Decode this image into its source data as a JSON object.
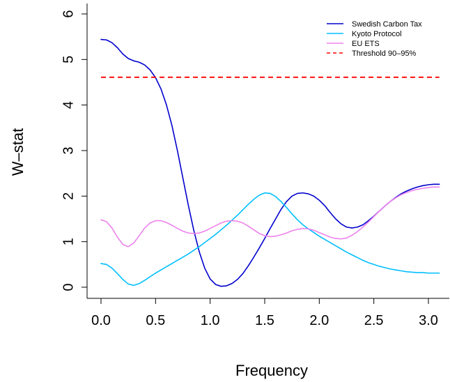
{
  "chart_data": {
    "type": "line",
    "title": "",
    "xlabel": "Frequency",
    "ylabel": "W–stat",
    "xlim": [
      0,
      3.1
    ],
    "ylim": [
      0,
      6
    ],
    "xticks": [
      0.0,
      0.5,
      1.0,
      1.5,
      2.0,
      2.5,
      3.0
    ],
    "xtick_labels": [
      "0.0",
      "0.5",
      "1.0",
      "1.5",
      "2.0",
      "2.5",
      "3.0"
    ],
    "yticks": [
      0,
      1,
      2,
      3,
      4,
      5,
      6
    ],
    "ytick_labels": [
      "0",
      "1",
      "2",
      "3",
      "4",
      "5",
      "6"
    ],
    "grid": false,
    "legend_position": "top-right",
    "series": [
      {
        "name": "Swedish Carbon Tax",
        "color": "#0000cd",
        "dash": "solid",
        "x": [
          0.0,
          0.05,
          0.1,
          0.15,
          0.2,
          0.25,
          0.3,
          0.35,
          0.4,
          0.45,
          0.5,
          0.55,
          0.6,
          0.65,
          0.7,
          0.75,
          0.8,
          0.85,
          0.9,
          0.95,
          1.0,
          1.05,
          1.1,
          1.15,
          1.2,
          1.25,
          1.3,
          1.35,
          1.4,
          1.45,
          1.5,
          1.55,
          1.6,
          1.65,
          1.7,
          1.75,
          1.8,
          1.85,
          1.9,
          1.95,
          2.0,
          2.05,
          2.1,
          2.15,
          2.2,
          2.25,
          2.3,
          2.35,
          2.4,
          2.45,
          2.5,
          2.55,
          2.6,
          2.65,
          2.7,
          2.75,
          2.8,
          2.85,
          2.9,
          2.95,
          3.0,
          3.05,
          3.1
        ],
        "values": [
          5.44,
          5.43,
          5.37,
          5.26,
          5.12,
          5.02,
          4.97,
          4.94,
          4.88,
          4.77,
          4.6,
          4.35,
          4.0,
          3.55,
          3.0,
          2.4,
          1.8,
          1.25,
          0.78,
          0.42,
          0.18,
          0.06,
          0.02,
          0.03,
          0.08,
          0.17,
          0.3,
          0.47,
          0.66,
          0.86,
          1.07,
          1.29,
          1.5,
          1.71,
          1.88,
          2.0,
          2.06,
          2.07,
          2.05,
          2.0,
          1.91,
          1.79,
          1.64,
          1.5,
          1.39,
          1.32,
          1.3,
          1.32,
          1.37,
          1.46,
          1.56,
          1.67,
          1.78,
          1.88,
          1.97,
          2.05,
          2.11,
          2.16,
          2.2,
          2.23,
          2.25,
          2.26,
          2.26
        ]
      },
      {
        "name": "Kyoto Protocol",
        "color": "#00bfff",
        "dash": "solid",
        "x": [
          0.0,
          0.05,
          0.1,
          0.15,
          0.2,
          0.25,
          0.3,
          0.35,
          0.4,
          0.45,
          0.5,
          0.55,
          0.6,
          0.65,
          0.7,
          0.75,
          0.8,
          0.85,
          0.9,
          0.95,
          1.0,
          1.05,
          1.1,
          1.15,
          1.2,
          1.25,
          1.3,
          1.35,
          1.4,
          1.45,
          1.5,
          1.55,
          1.6,
          1.65,
          1.7,
          1.75,
          1.8,
          1.85,
          1.9,
          1.95,
          2.0,
          2.05,
          2.1,
          2.15,
          2.2,
          2.25,
          2.3,
          2.35,
          2.4,
          2.45,
          2.5,
          2.55,
          2.6,
          2.65,
          2.7,
          2.75,
          2.8,
          2.85,
          2.9,
          2.95,
          3.0,
          3.05,
          3.1
        ],
        "values": [
          0.52,
          0.5,
          0.42,
          0.3,
          0.17,
          0.07,
          0.04,
          0.08,
          0.15,
          0.23,
          0.31,
          0.38,
          0.45,
          0.52,
          0.59,
          0.66,
          0.73,
          0.81,
          0.89,
          0.98,
          1.07,
          1.16,
          1.26,
          1.36,
          1.47,
          1.58,
          1.7,
          1.82,
          1.93,
          2.02,
          2.07,
          2.06,
          1.99,
          1.88,
          1.75,
          1.61,
          1.48,
          1.37,
          1.28,
          1.2,
          1.12,
          1.05,
          0.98,
          0.91,
          0.84,
          0.77,
          0.71,
          0.65,
          0.59,
          0.54,
          0.5,
          0.46,
          0.43,
          0.4,
          0.38,
          0.36,
          0.34,
          0.33,
          0.32,
          0.32,
          0.31,
          0.31,
          0.31
        ]
      },
      {
        "name": "EU ETS",
        "color": "#ee82ee",
        "dash": "solid",
        "x": [
          0.0,
          0.05,
          0.1,
          0.15,
          0.2,
          0.25,
          0.3,
          0.35,
          0.4,
          0.45,
          0.5,
          0.55,
          0.6,
          0.65,
          0.7,
          0.75,
          0.8,
          0.85,
          0.9,
          0.95,
          1.0,
          1.05,
          1.1,
          1.15,
          1.2,
          1.25,
          1.3,
          1.35,
          1.4,
          1.45,
          1.5,
          1.55,
          1.6,
          1.65,
          1.7,
          1.75,
          1.8,
          1.85,
          1.9,
          1.95,
          2.0,
          2.05,
          2.1,
          2.15,
          2.2,
          2.25,
          2.3,
          2.35,
          2.4,
          2.45,
          2.5,
          2.55,
          2.6,
          2.65,
          2.7,
          2.75,
          2.8,
          2.85,
          2.9,
          2.95,
          3.0,
          3.05,
          3.1
        ],
        "values": [
          1.48,
          1.44,
          1.3,
          1.1,
          0.94,
          0.89,
          0.97,
          1.13,
          1.3,
          1.41,
          1.46,
          1.46,
          1.42,
          1.36,
          1.29,
          1.23,
          1.19,
          1.18,
          1.19,
          1.23,
          1.29,
          1.35,
          1.41,
          1.45,
          1.46,
          1.45,
          1.41,
          1.34,
          1.26,
          1.18,
          1.13,
          1.11,
          1.12,
          1.15,
          1.19,
          1.24,
          1.27,
          1.29,
          1.28,
          1.25,
          1.2,
          1.15,
          1.1,
          1.07,
          1.06,
          1.08,
          1.14,
          1.22,
          1.32,
          1.43,
          1.55,
          1.67,
          1.78,
          1.88,
          1.96,
          2.03,
          2.08,
          2.12,
          2.15,
          2.17,
          2.19,
          2.2,
          2.2
        ]
      },
      {
        "name": "Threshold 90–95%",
        "color": "#ff0000",
        "dash": "dashed",
        "x": [
          0.0,
          3.1
        ],
        "values": [
          4.61,
          4.61
        ]
      }
    ]
  }
}
